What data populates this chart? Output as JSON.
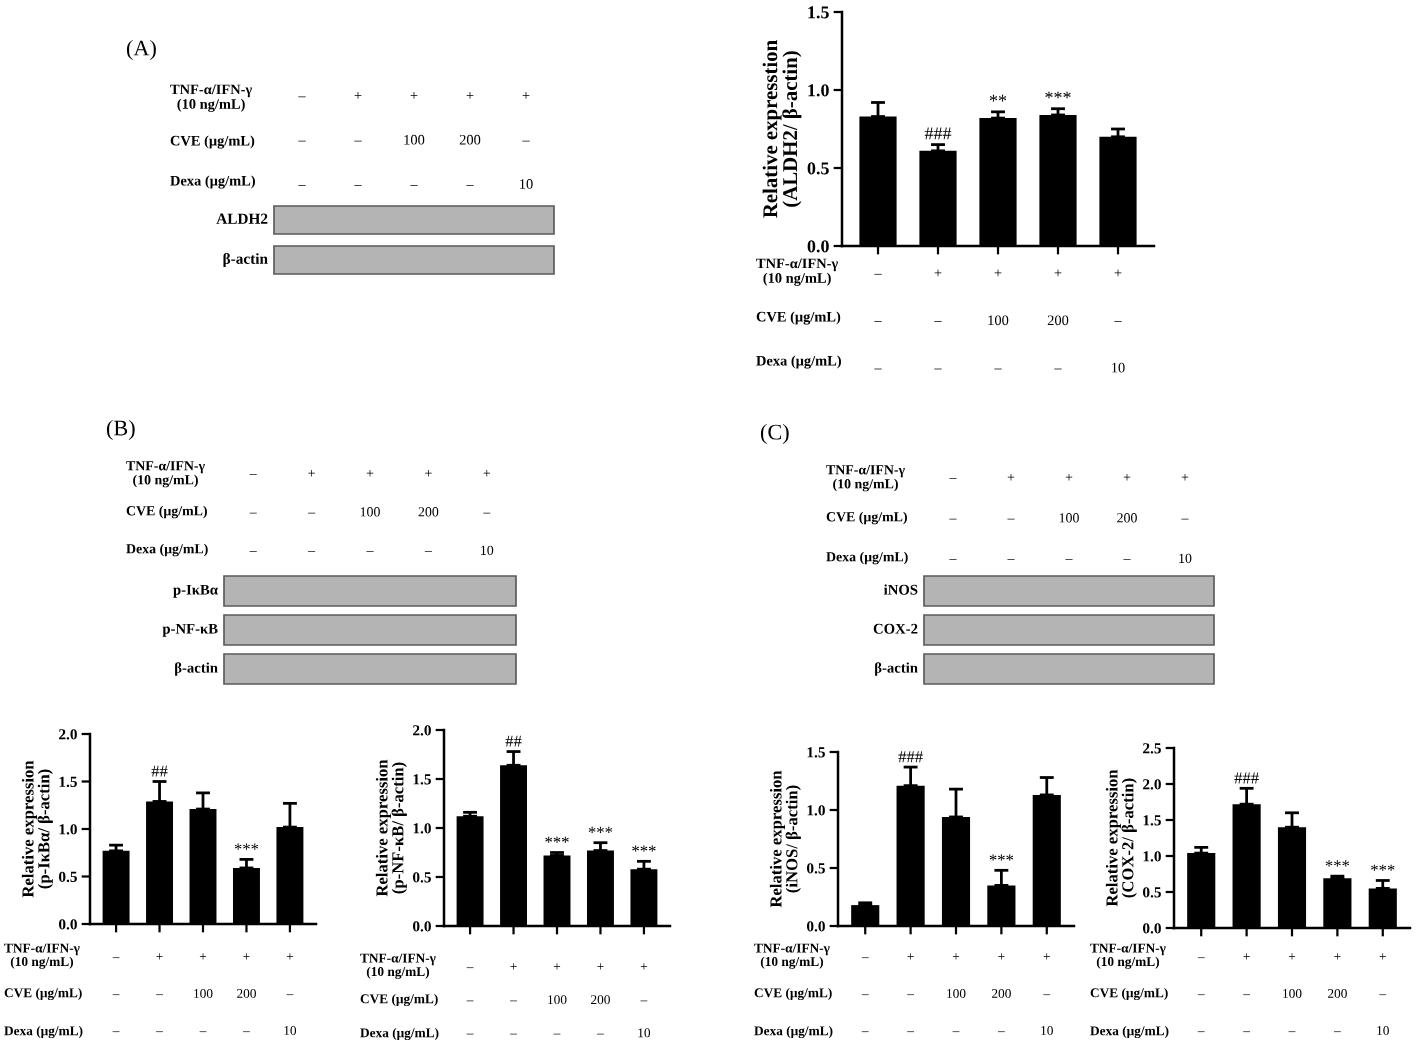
{
  "chart_data": [
    {
      "type": "other",
      "title": "(A)",
      "categories": [
        "–\n–\n–",
        "+\n–\n–",
        "+\n100\n–",
        "+\n200\n–",
        "+\n–\n10"
      ],
      "annotations": [
        "TNF-α/IFN-γ\n(10 ng/mL)",
        "CVE (μg/mL)",
        "Dexa (μg/mL)",
        "ALDH2",
        "β-actin"
      ]
    },
    {
      "type": "bar",
      "ylabel": "Relative expresstion\n(ALDH2/ β-actin)",
      "categories": [
        "–\n–\n–",
        "+\n–\n–",
        "+\n100\n–",
        "+\n200\n–",
        "+\n–\n10"
      ],
      "values": [
        0.83,
        0.61,
        0.82,
        0.84,
        0.7
      ],
      "errors": [
        0.09,
        0.04,
        0.04,
        0.04,
        0.05
      ],
      "color": "#000000",
      "ylim": [
        0,
        1.5
      ],
      "yticks": [
        {
          "value": 0,
          "label": "0.0"
        },
        {
          "value": 0.5,
          "label": "0.5"
        },
        {
          "value": 1,
          "label": "1.0"
        },
        {
          "value": 1.5,
          "label": "1.5"
        }
      ],
      "annotations": [
        "TNF-α/IFN-γ\n(10 ng/mL)",
        "CVE (μg/mL)",
        "Dexa (μg/mL)",
        {
          "text": "###",
          "x": "+\n–\n–",
          "y": 0.65
        },
        {
          "text": "**",
          "x": "+\n100\n–",
          "y": 0.86
        },
        {
          "text": "***",
          "x": "+\n200\n–",
          "y": 0.88
        }
      ]
    },
    {
      "type": "other",
      "title": "(B)",
      "categories": [
        "–\n–\n–",
        "+\n–\n–",
        "+\n100\n–",
        "+\n200\n–",
        "+\n–\n10"
      ],
      "annotations": [
        "TNF-α/IFN-γ\n(10 ng/mL)",
        "CVE (μg/mL)",
        "Dexa (μg/mL)",
        "p-IκBα",
        "p-NF-κB",
        "β-actin"
      ]
    },
    {
      "type": "other",
      "title": "(C)",
      "categories": [
        "–\n–\n–",
        "+\n–\n–",
        "+\n100\n–",
        "+\n200\n–",
        "+\n–\n10"
      ],
      "annotations": [
        "TNF-α/IFN-γ\n(10 ng/mL)",
        "CVE (μg/mL)",
        "Dexa (μg/mL)",
        "iNOS",
        "COX-2",
        "β-actin"
      ]
    },
    {
      "type": "bar",
      "ylabel": "Relative expression\n(p-IκBα/ β-actin)",
      "categories": [
        "–\n–\n–",
        "+\n–\n–",
        "+\n100\n–",
        "+\n200\n–",
        "+\n–\n10"
      ],
      "values": [
        0.77,
        1.29,
        1.21,
        0.59,
        1.02
      ],
      "errors": [
        0.06,
        0.21,
        0.17,
        0.09,
        0.25
      ],
      "color": "#000000",
      "ylim": [
        0,
        2.0
      ],
      "yticks": [
        {
          "value": 0,
          "label": "0.0"
        },
        {
          "value": 0.5,
          "label": "0.5"
        },
        {
          "value": 1,
          "label": "1.0"
        },
        {
          "value": 1.5,
          "label": "1.5"
        },
        {
          "value": 2,
          "label": "2.0"
        }
      ],
      "annotations": [
        "TNF-α/IFN-γ\n(10 ng/mL)",
        "CVE (μg/mL)",
        "Dexa (μg/mL)",
        {
          "text": "##",
          "x": "+\n–\n–",
          "y": 1.5
        },
        {
          "text": "***",
          "x": "+\n200\n–",
          "y": 0.68
        }
      ]
    },
    {
      "type": "bar",
      "ylabel": "Relative expression\n(p-NF-κB/ β-actin)",
      "categories": [
        "–\n–\n–",
        "+\n–\n–",
        "+\n100\n–",
        "+\n200\n–",
        "+\n–\n10"
      ],
      "values": [
        1.12,
        1.64,
        0.72,
        0.77,
        0.58
      ],
      "errors": [
        0.04,
        0.14,
        0.03,
        0.08,
        0.08
      ],
      "color": "#000000",
      "ylim": [
        0,
        2.0
      ],
      "yticks": [
        {
          "value": 0,
          "label": "0.0"
        },
        {
          "value": 0.5,
          "label": "0.5"
        },
        {
          "value": 1,
          "label": "1.0"
        },
        {
          "value": 1.5,
          "label": "1.5"
        },
        {
          "value": 2,
          "label": "2.0"
        }
      ],
      "annotations": [
        "TNF-α/IFN-γ\n(10 ng/mL)",
        "CVE (μg/mL)",
        "Dexa (μg/mL)",
        {
          "text": "##",
          "x": "+\n–\n–",
          "y": 1.78
        },
        {
          "text": "***",
          "x": "+\n100\n–",
          "y": 0.75
        },
        {
          "text": "***",
          "x": "+\n200\n–",
          "y": 0.85
        },
        {
          "text": "***",
          "x": "+\n–\n10",
          "y": 0.66
        }
      ]
    },
    {
      "type": "bar",
      "ylabel": "Relative expression\n(iNOS/ β-actin)",
      "categories": [
        "–\n–\n–",
        "+\n–\n–",
        "+\n100\n–",
        "+\n200\n–",
        "+\n–\n10"
      ],
      "values": [
        0.18,
        1.21,
        0.94,
        0.35,
        1.13
      ],
      "errors": [
        0.02,
        0.16,
        0.24,
        0.13,
        0.15
      ],
      "color": "#000000",
      "ylim": [
        0,
        1.5
      ],
      "yticks": [
        {
          "value": 0,
          "label": "0.0"
        },
        {
          "value": 0.5,
          "label": "0.5"
        },
        {
          "value": 1,
          "label": "1.0"
        },
        {
          "value": 1.5,
          "label": "1.5"
        }
      ],
      "annotations": [
        "TNF-α/IFN-γ\n(10 ng/mL)",
        "CVE (μg/mL)",
        "Dexa (μg/mL)",
        {
          "text": "###",
          "x": "+\n–\n–",
          "y": 1.37
        },
        {
          "text": "***",
          "x": "+\n200\n–",
          "y": 0.48
        }
      ]
    },
    {
      "type": "bar",
      "ylabel": "Relative expression\n(COX-2/ β-actin)",
      "categories": [
        "–\n–\n–",
        "+\n–\n–",
        "+\n100\n–",
        "+\n200\n–",
        "+\n–\n10"
      ],
      "values": [
        1.04,
        1.72,
        1.4,
        0.69,
        0.55
      ],
      "errors": [
        0.08,
        0.22,
        0.2,
        0.03,
        0.11
      ],
      "color": "#000000",
      "ylim": [
        0,
        2.5
      ],
      "yticks": [
        {
          "value": 0,
          "label": "0.0"
        },
        {
          "value": 0.5,
          "label": "0.5"
        },
        {
          "value": 1,
          "label": "1.0"
        },
        {
          "value": 1.5,
          "label": "1.5"
        },
        {
          "value": 2,
          "label": "2.0"
        },
        {
          "value": 2.5,
          "label": "2.5"
        }
      ],
      "annotations": [
        "TNF-α/IFN-γ\n(10 ng/mL)",
        "CVE (μg/mL)",
        "Dexa (μg/mL)",
        {
          "text": "###",
          "x": "+\n–\n–",
          "y": 1.94
        },
        {
          "text": "***",
          "x": "+\n200\n–",
          "y": 0.72
        },
        {
          "text": "***",
          "x": "+\n–\n10",
          "y": 0.66
        }
      ]
    }
  ]
}
